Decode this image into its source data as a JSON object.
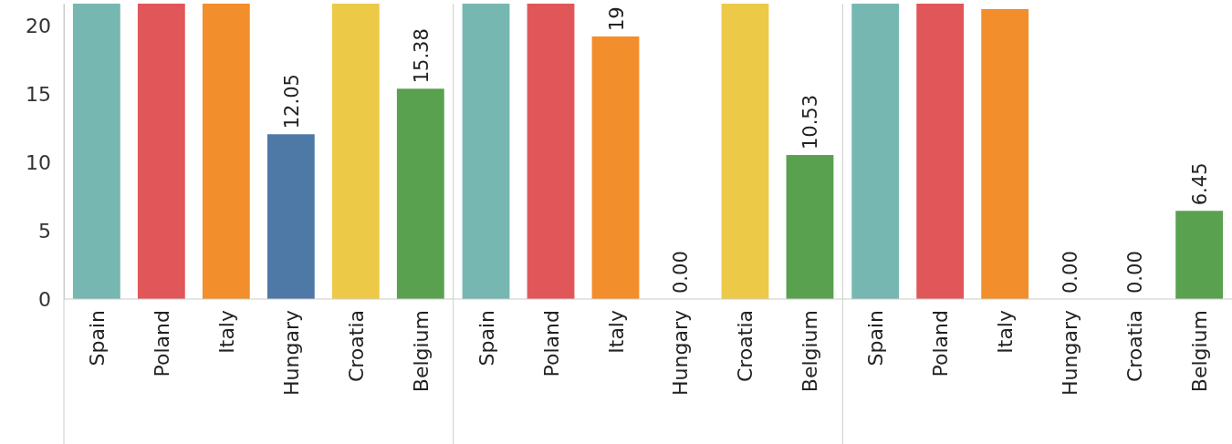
{
  "chart_data": [
    {
      "type": "bar",
      "categories": [
        "Spain",
        "Poland",
        "Italy",
        "Hungary",
        "Croatia",
        "Belgium"
      ],
      "values": [
        21.6,
        21.6,
        21.6,
        12.05,
        21.6,
        15.38
      ],
      "value_labels": [
        null,
        null,
        null,
        "12.05",
        null,
        "15.38"
      ],
      "colors": [
        "#76b7b2",
        "#e15759",
        "#f28e2b",
        "#4e79a7",
        "#edc948",
        "#59a14f"
      ],
      "ylim": [
        0,
        21.6
      ],
      "yticks": [
        0,
        5,
        10,
        15,
        20
      ]
    },
    {
      "type": "bar",
      "categories": [
        "Spain",
        "Poland",
        "Italy",
        "Hungary",
        "Croatia",
        "Belgium"
      ],
      "values": [
        21.6,
        21.6,
        19.2,
        0,
        21.6,
        10.53
      ],
      "value_labels": [
        null,
        null,
        "19",
        "0.00",
        null,
        "10.53"
      ],
      "colors": [
        "#76b7b2",
        "#e15759",
        "#f28e2b",
        "#4e79a7",
        "#edc948",
        "#59a14f"
      ],
      "ylim": [
        0,
        21.6
      ],
      "tick_labels": "x"
    },
    {
      "type": "bar",
      "categories": [
        "Spain",
        "Poland",
        "Italy",
        "Hungary",
        "Croatia",
        "Belgium"
      ],
      "values": [
        21.6,
        21.6,
        21.2,
        0,
        0,
        6.45
      ],
      "value_labels": [
        null,
        null,
        null,
        "0.00",
        "0.00",
        "6.45"
      ],
      "colors": [
        "#76b7b2",
        "#e15759",
        "#f28e2b",
        "#4e79a7",
        "#edc948",
        "#59a14f"
      ],
      "ylim": [
        0,
        21.6
      ],
      "tick_labels": "x"
    }
  ]
}
